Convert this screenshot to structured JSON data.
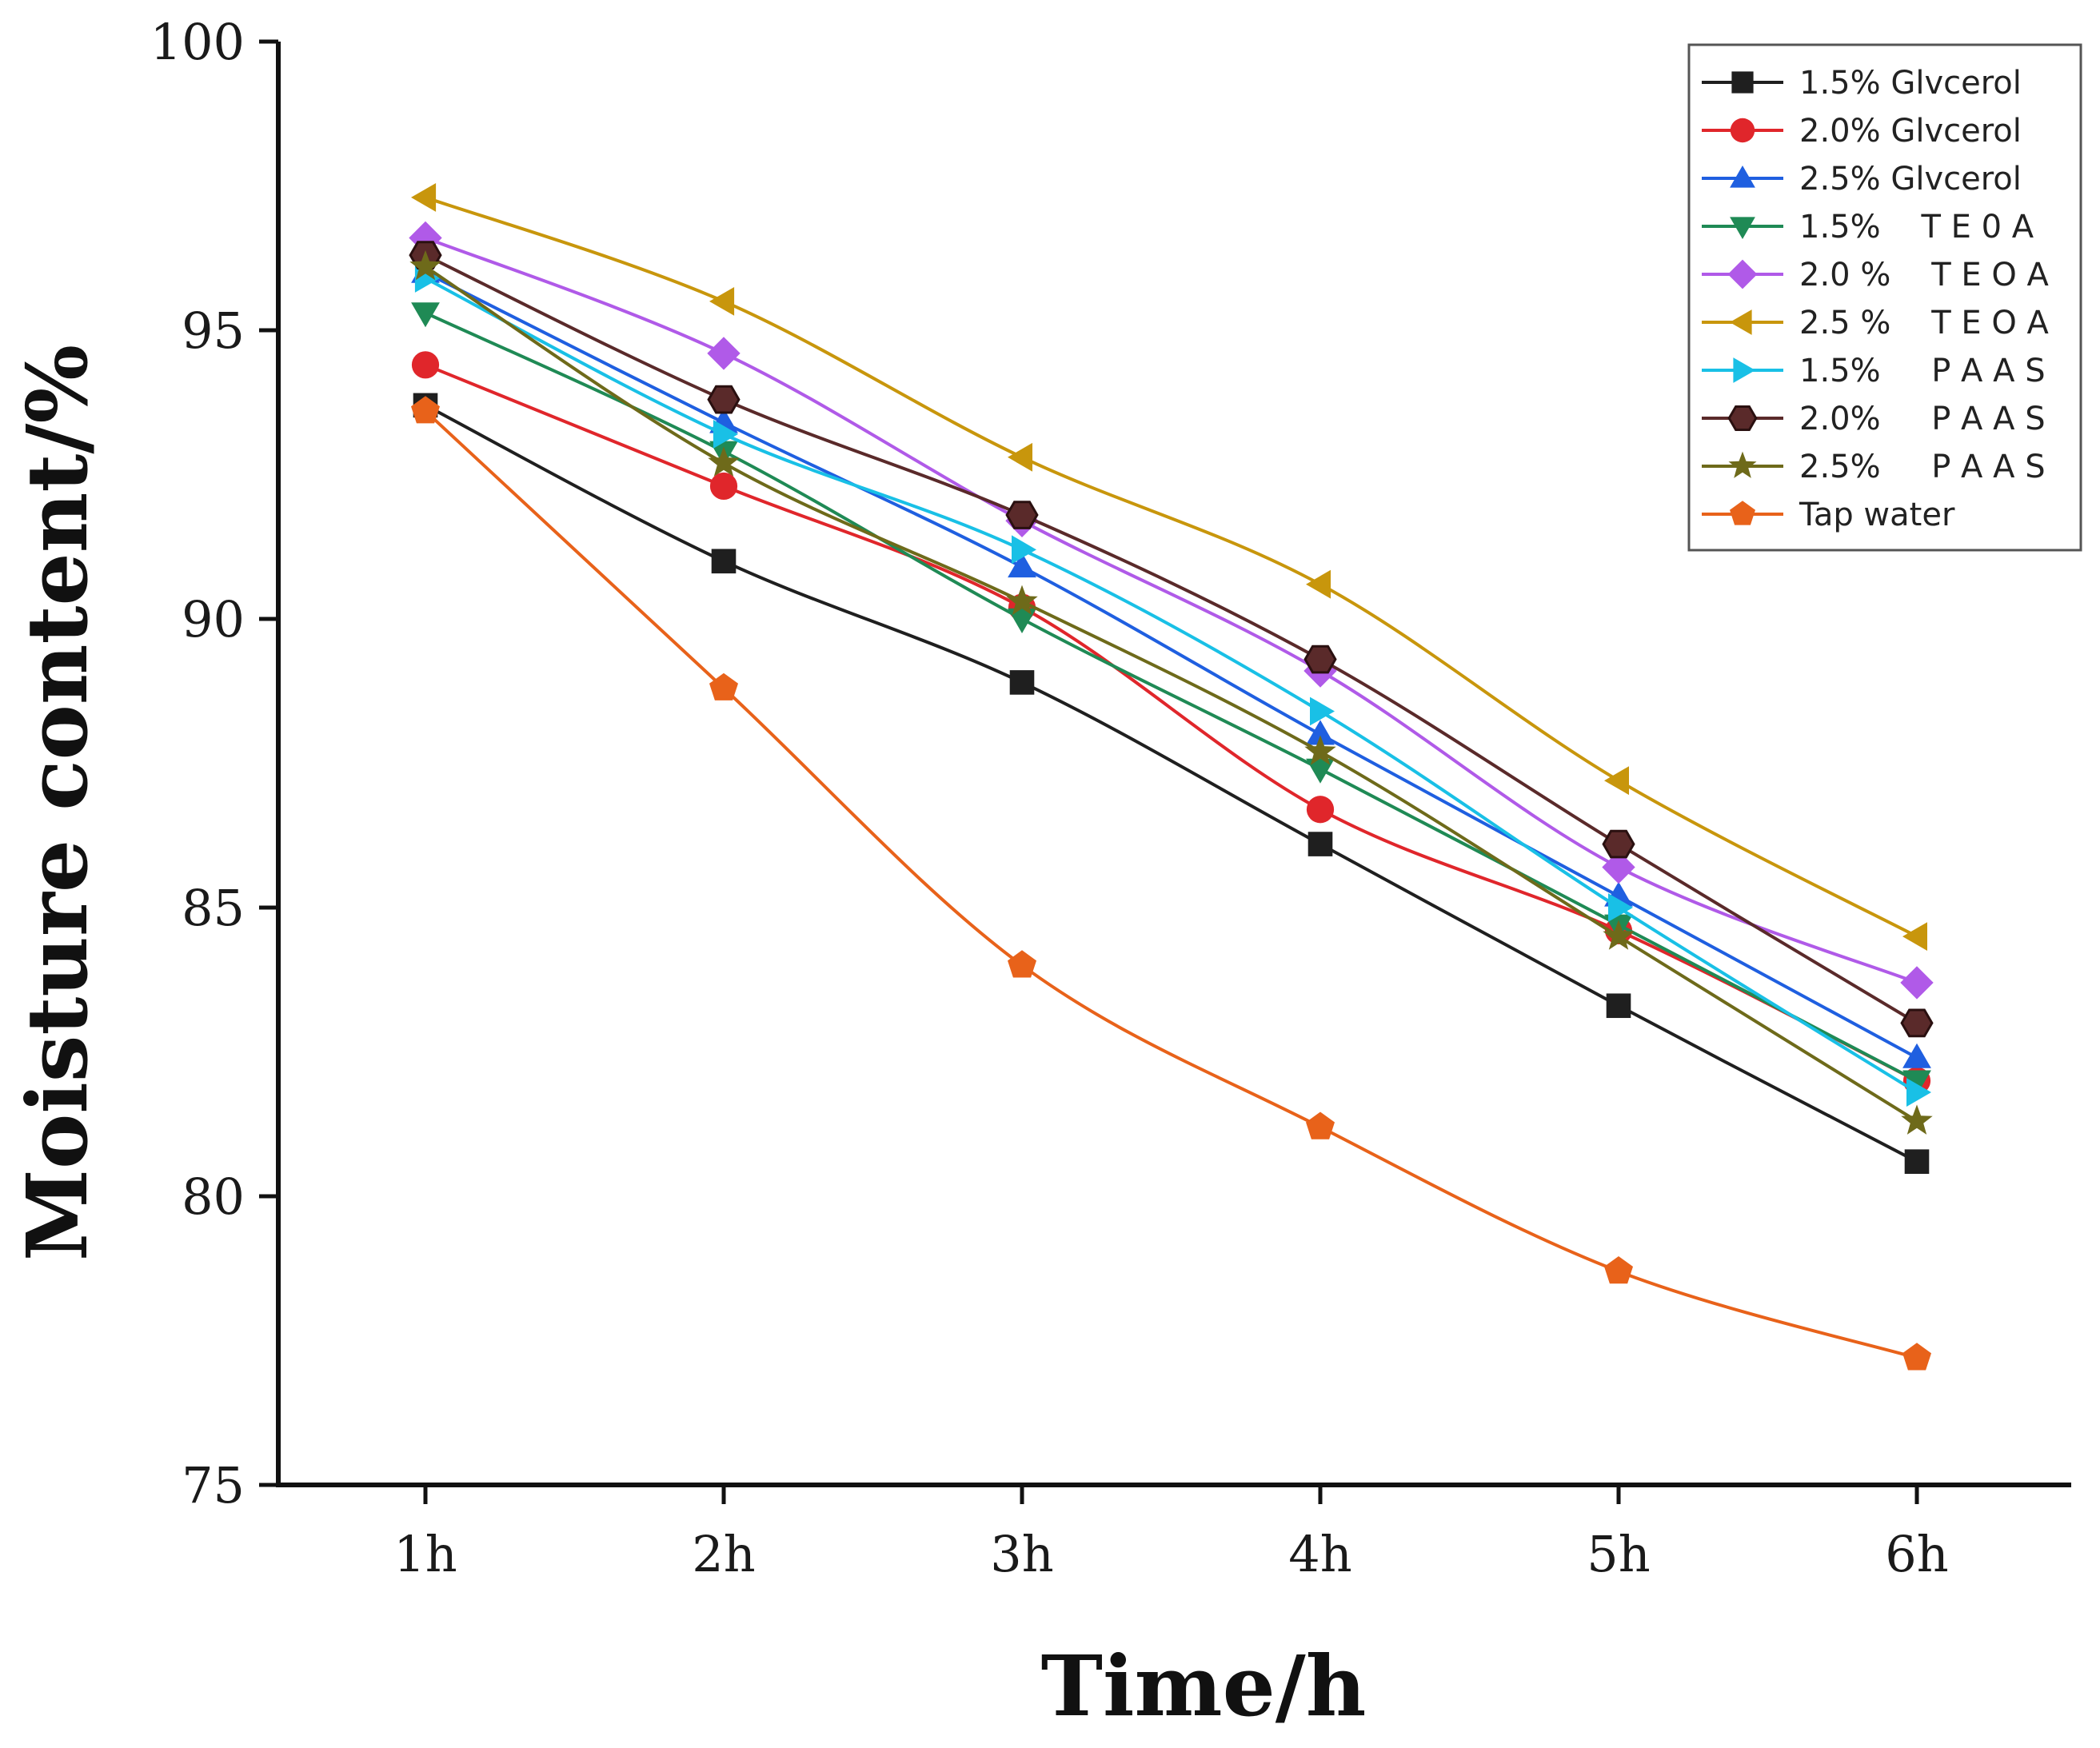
{
  "chart_data": {
    "type": "line",
    "title": "",
    "xlabel": "Time/h",
    "ylabel": "Moisture content/%",
    "categories": [
      "1h",
      "2h",
      "3h",
      "4h",
      "5h",
      "6h"
    ],
    "ylim": [
      75,
      100
    ],
    "yticks": [
      "75",
      "80",
      "85",
      "90",
      "95",
      "100"
    ],
    "legend_position": "top-right",
    "grid": false,
    "series": [
      {
        "name": "1.5% Glvcerol",
        "color": "#1f1f1f",
        "marker": "square",
        "values": [
          93.7,
          91.0,
          88.9,
          86.1,
          83.3,
          80.6
        ]
      },
      {
        "name": "2.0% Glvcerol",
        "color": "#e0262b",
        "marker": "circle",
        "values": [
          94.4,
          92.3,
          90.2,
          86.7,
          84.6,
          82.0
        ]
      },
      {
        "name": "2.5% Glvcerol",
        "color": "#1f5fe0",
        "marker": "triangle-up",
        "values": [
          96.0,
          93.4,
          90.9,
          88.0,
          85.2,
          82.4
        ]
      },
      {
        "name": "1.5%    T E 0 A",
        "color": "#1f8a55",
        "marker": "triangle-down",
        "values": [
          95.3,
          92.9,
          90.0,
          87.4,
          84.7,
          82.0
        ]
      },
      {
        "name": "2.0 %    T E O A",
        "color": "#b05ae8",
        "marker": "diamond",
        "values": [
          96.6,
          94.6,
          91.7,
          89.1,
          85.7,
          83.7
        ]
      },
      {
        "name": "2.5 %    T E O A",
        "color": "#c8960c",
        "marker": "triangle-left",
        "values": [
          97.3,
          95.5,
          92.8,
          90.6,
          87.2,
          84.5
        ]
      },
      {
        "name": "1.5%     P A A S",
        "color": "#19c0e6",
        "marker": "triangle-right",
        "values": [
          95.9,
          93.2,
          91.2,
          88.4,
          85.0,
          81.8
        ]
      },
      {
        "name": "2.0%     P A A S",
        "color": "#5a2a2a",
        "marker": "hexagon",
        "values": [
          96.3,
          93.8,
          91.8,
          89.3,
          86.1,
          83.0
        ]
      },
      {
        "name": "2.5%     P A A S",
        "color": "#6e6a1a",
        "marker": "star",
        "values": [
          96.1,
          92.7,
          90.3,
          87.7,
          84.5,
          81.3
        ]
      },
      {
        "name": "Tap water",
        "color": "#e8621a",
        "marker": "pentagon",
        "values": [
          93.6,
          88.8,
          84.0,
          81.2,
          78.7,
          77.2
        ]
      }
    ]
  }
}
